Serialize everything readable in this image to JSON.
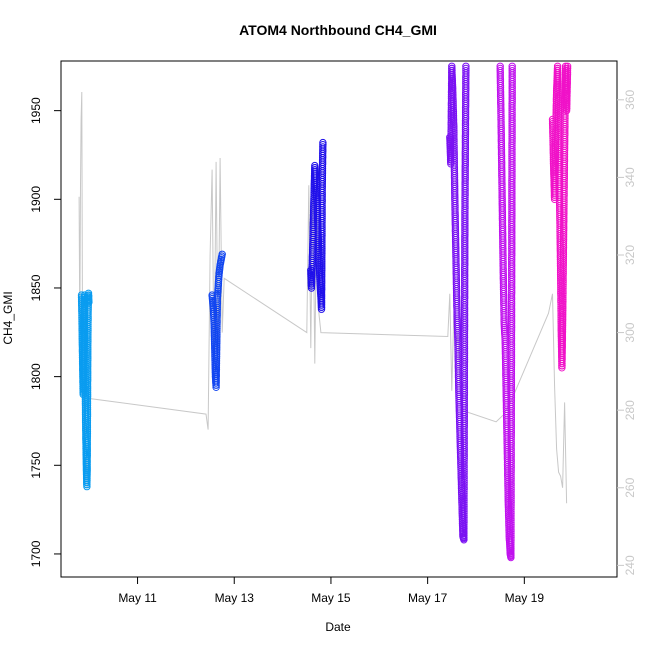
{
  "chart_data": {
    "type": "scatter",
    "title": "ATOM4 Northbound CH4_GMI",
    "xlabel": "Date",
    "ylabel": "CH4_GMI",
    "xlim": [
      "2018-05-09T10:00",
      "2018-05-20T22:00"
    ],
    "ylim": [
      1687,
      1978
    ],
    "y2lim": [
      237,
      370
    ],
    "x_ticks": [
      {
        "date": "2018-05-11T00:00",
        "label": "May 11"
      },
      {
        "date": "2018-05-13T00:00",
        "label": "May 13"
      },
      {
        "date": "2018-05-15T00:00",
        "label": "May 15"
      },
      {
        "date": "2018-05-17T00:00",
        "label": "May 17"
      },
      {
        "date": "2018-05-19T00:00",
        "label": "May 19"
      }
    ],
    "y_ticks": [
      1700,
      1750,
      1800,
      1850,
      1900,
      1950
    ],
    "y2_ticks": [
      240,
      260,
      280,
      300,
      320,
      340,
      360
    ],
    "grid": false,
    "series": [
      {
        "color": "#0a9cf0",
        "points": [
          [
            "2018-05-09T20:10",
            1846
          ],
          [
            "2018-05-09T20:20",
            1838
          ],
          [
            "2018-05-09T20:30",
            1825
          ],
          [
            "2018-05-09T20:40",
            1812
          ],
          [
            "2018-05-09T20:50",
            1800
          ],
          [
            "2018-05-09T21:00",
            1790
          ],
          [
            "2018-05-09T21:10",
            1800
          ],
          [
            "2018-05-09T21:20",
            1818
          ],
          [
            "2018-05-09T21:30",
            1835
          ],
          [
            "2018-05-09T21:40",
            1846
          ],
          [
            "2018-05-09T21:50",
            1830
          ],
          [
            "2018-05-09T22:00",
            1805
          ],
          [
            "2018-05-09T22:10",
            1780
          ],
          [
            "2018-05-09T22:20",
            1765
          ],
          [
            "2018-05-09T22:30",
            1755
          ],
          [
            "2018-05-09T22:40",
            1745
          ],
          [
            "2018-05-09T22:50",
            1738
          ],
          [
            "2018-05-09T23:00",
            1748
          ],
          [
            "2018-05-09T23:10",
            1785
          ],
          [
            "2018-05-09T23:20",
            1820
          ],
          [
            "2018-05-09T23:30",
            1840
          ],
          [
            "2018-05-09T23:40",
            1847
          ],
          [
            "2018-05-09T23:50",
            1842
          ]
        ]
      },
      {
        "color": "#1246f0",
        "points": [
          [
            "2018-05-12T13:00",
            1846
          ],
          [
            "2018-05-12T13:20",
            1842
          ],
          [
            "2018-05-12T13:40",
            1838
          ],
          [
            "2018-05-12T14:00",
            1830
          ],
          [
            "2018-05-12T14:20",
            1815
          ],
          [
            "2018-05-12T14:40",
            1800
          ],
          [
            "2018-05-12T15:00",
            1794
          ],
          [
            "2018-05-12T15:20",
            1820
          ],
          [
            "2018-05-12T15:40",
            1845
          ],
          [
            "2018-05-12T16:00",
            1850
          ],
          [
            "2018-05-12T16:20",
            1856
          ],
          [
            "2018-05-12T16:40",
            1860
          ],
          [
            "2018-05-12T17:00",
            1863
          ],
          [
            "2018-05-12T17:30",
            1866
          ],
          [
            "2018-05-12T18:00",
            1869
          ]
        ]
      },
      {
        "color": "#2010ea",
        "points": [
          [
            "2018-05-14T14:00",
            1860
          ],
          [
            "2018-05-14T14:20",
            1850
          ],
          [
            "2018-05-14T14:40",
            1862
          ],
          [
            "2018-05-14T15:00",
            1875
          ],
          [
            "2018-05-14T15:20",
            1890
          ],
          [
            "2018-05-14T15:40",
            1905
          ],
          [
            "2018-05-14T16:00",
            1919
          ],
          [
            "2018-05-14T16:30",
            1912
          ],
          [
            "2018-05-14T17:00",
            1900
          ],
          [
            "2018-05-14T17:30",
            1885
          ],
          [
            "2018-05-14T18:00",
            1870
          ],
          [
            "2018-05-14T18:30",
            1855
          ],
          [
            "2018-05-14T19:00",
            1845
          ],
          [
            "2018-05-14T19:20",
            1838
          ],
          [
            "2018-05-14T19:40",
            1905
          ],
          [
            "2018-05-14T20:00",
            1932
          ]
        ]
      },
      {
        "color": "#7a12f2",
        "points": [
          [
            "2018-05-17T11:00",
            1935
          ],
          [
            "2018-05-17T11:30",
            1920
          ],
          [
            "2018-05-17T12:00",
            1975
          ],
          [
            "2018-05-17T12:30",
            1960
          ],
          [
            "2018-05-17T13:00",
            1940
          ],
          [
            "2018-05-17T13:30",
            1900
          ],
          [
            "2018-05-17T14:00",
            1870
          ],
          [
            "2018-05-17T14:30",
            1840
          ],
          [
            "2018-05-17T15:00",
            1820
          ],
          [
            "2018-05-17T15:30",
            1790
          ],
          [
            "2018-05-17T16:00",
            1770
          ],
          [
            "2018-05-17T16:30",
            1750
          ],
          [
            "2018-05-17T17:00",
            1730
          ],
          [
            "2018-05-17T17:30",
            1710
          ],
          [
            "2018-05-17T18:00",
            1708
          ],
          [
            "2018-05-17T18:30",
            1890
          ],
          [
            "2018-05-17T19:00",
            1975
          ]
        ]
      },
      {
        "color": "#c012ee",
        "points": [
          [
            "2018-05-18T12:00",
            1975
          ],
          [
            "2018-05-18T12:30",
            1940
          ],
          [
            "2018-05-18T13:00",
            1900
          ],
          [
            "2018-05-18T13:30",
            1860
          ],
          [
            "2018-05-18T14:00",
            1830
          ],
          [
            "2018-05-18T14:30",
            1820
          ],
          [
            "2018-05-18T15:00",
            1790
          ],
          [
            "2018-05-18T15:30",
            1760
          ],
          [
            "2018-05-18T16:00",
            1730
          ],
          [
            "2018-05-18T16:30",
            1710
          ],
          [
            "2018-05-18T17:00",
            1700
          ],
          [
            "2018-05-18T17:20",
            1698
          ],
          [
            "2018-05-18T17:40",
            1830
          ],
          [
            "2018-05-18T18:00",
            1975
          ]
        ]
      },
      {
        "color": "#f012c8",
        "points": [
          [
            "2018-05-19T14:00",
            1945
          ],
          [
            "2018-05-19T14:30",
            1920
          ],
          [
            "2018-05-19T15:00",
            1900
          ],
          [
            "2018-05-19T15:30",
            1930
          ],
          [
            "2018-05-19T16:00",
            1960
          ],
          [
            "2018-05-19T16:30",
            1975
          ],
          [
            "2018-05-19T17:00",
            1950
          ],
          [
            "2018-05-19T17:30",
            1900
          ],
          [
            "2018-05-19T18:00",
            1860
          ],
          [
            "2018-05-19T18:20",
            1825
          ],
          [
            "2018-05-19T18:40",
            1805
          ],
          [
            "2018-05-19T19:00",
            1830
          ],
          [
            "2018-05-19T19:30",
            1880
          ],
          [
            "2018-05-19T20:00",
            1930
          ],
          [
            "2018-05-19T20:30",
            1975
          ],
          [
            "2018-05-19T21:00",
            1950
          ],
          [
            "2018-05-19T21:30",
            1975
          ]
        ]
      }
    ],
    "secondary_line": {
      "color": "#c8c8c8",
      "points": [
        [
          "2018-05-09T19:00",
          335
        ],
        [
          "2018-05-09T19:20",
          300
        ],
        [
          "2018-05-09T19:40",
          338
        ],
        [
          "2018-05-09T20:00",
          355
        ],
        [
          "2018-05-09T20:20",
          362
        ],
        [
          "2018-05-09T20:40",
          300
        ],
        [
          "2018-05-09T21:00",
          282
        ],
        [
          "2018-05-09T21:40",
          280
        ],
        [
          "2018-05-09T22:20",
          272
        ],
        [
          "2018-05-09T23:00",
          260
        ],
        [
          "2018-05-10T00:00",
          283
        ],
        [
          "2018-05-12T10:00",
          279
        ],
        [
          "2018-05-12T11:00",
          275
        ],
        [
          "2018-05-12T12:00",
          320
        ],
        [
          "2018-05-12T13:00",
          342
        ],
        [
          "2018-05-12T14:00",
          290
        ],
        [
          "2018-05-12T15:00",
          344
        ],
        [
          "2018-05-12T16:00",
          292
        ],
        [
          "2018-05-12T17:00",
          345
        ],
        [
          "2018-05-12T18:00",
          300
        ],
        [
          "2018-05-12T19:00",
          314
        ],
        [
          "2018-05-14T12:00",
          300
        ],
        [
          "2018-05-14T13:00",
          338
        ],
        [
          "2018-05-14T14:00",
          296
        ],
        [
          "2018-05-14T15:00",
          340
        ],
        [
          "2018-05-14T16:00",
          292
        ],
        [
          "2018-05-14T17:00",
          336
        ],
        [
          "2018-05-14T18:00",
          305
        ],
        [
          "2018-05-14T19:00",
          300
        ],
        [
          "2018-05-17T10:00",
          299
        ],
        [
          "2018-05-17T11:00",
          310
        ],
        [
          "2018-05-17T12:00",
          285
        ],
        [
          "2018-05-17T13:00",
          305
        ],
        [
          "2018-05-17T14:00",
          296
        ],
        [
          "2018-05-17T15:00",
          300
        ],
        [
          "2018-05-17T16:00",
          286
        ],
        [
          "2018-05-17T17:00",
          280
        ],
        [
          "2018-05-18T10:00",
          277
        ],
        [
          "2018-05-18T14:00",
          279
        ],
        [
          "2018-05-18T18:00",
          283
        ],
        [
          "2018-05-19T12:00",
          305
        ],
        [
          "2018-05-19T14:00",
          310
        ],
        [
          "2018-05-19T15:00",
          286
        ],
        [
          "2018-05-19T16:00",
          270
        ],
        [
          "2018-05-19T17:00",
          264
        ],
        [
          "2018-05-19T18:00",
          263
        ],
        [
          "2018-05-19T19:00",
          260
        ],
        [
          "2018-05-19T20:00",
          282
        ],
        [
          "2018-05-19T21:00",
          256
        ]
      ]
    }
  }
}
